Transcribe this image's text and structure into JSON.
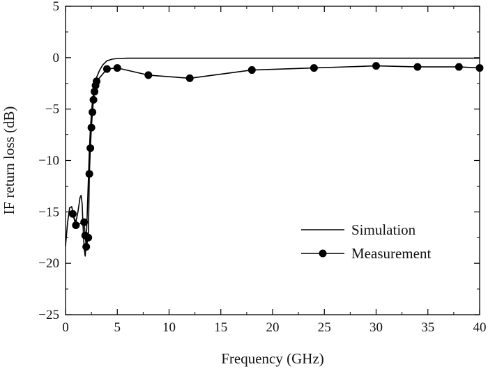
{
  "chart_data": {
    "type": "line",
    "title": "",
    "xlabel": "Frequency (GHz)",
    "ylabel": "IF return loss (dB)",
    "xlim": [
      0,
      40
    ],
    "ylim": [
      -25,
      5
    ],
    "xticks": [
      0,
      5,
      10,
      15,
      20,
      25,
      30,
      35,
      40
    ],
    "yticks": [
      5,
      0,
      -5,
      -10,
      -15,
      -20,
      -25
    ],
    "grid": false,
    "legend_position": "lower-right",
    "series": [
      {
        "name": "Simulation",
        "style": "line",
        "color": "#000000",
        "x": [
          0,
          0.2,
          0.4,
          0.6,
          0.8,
          1.0,
          1.2,
          1.4,
          1.5,
          1.6,
          1.7,
          1.8,
          1.9,
          2.0,
          2.1,
          2.2,
          2.3,
          2.4,
          2.5,
          2.6,
          2.8,
          3.0,
          3.3,
          3.6,
          4.0,
          4.5,
          5.0,
          6.0,
          8.0,
          12.0,
          20.0,
          30.0,
          40.0
        ],
        "y": [
          -18.3,
          -16.0,
          -14.6,
          -14.5,
          -15.5,
          -16.0,
          -15.0,
          -13.6,
          -13.4,
          -14.2,
          -16.5,
          -18.5,
          -19.3,
          -18.0,
          -15.0,
          -12.0,
          -9.0,
          -7.0,
          -5.5,
          -4.2,
          -2.8,
          -1.9,
          -1.2,
          -0.7,
          -0.3,
          -0.15,
          -0.08,
          -0.05,
          -0.05,
          -0.05,
          -0.05,
          -0.05,
          -0.05
        ]
      },
      {
        "name": "Measurement",
        "style": "line-marker",
        "color": "#000000",
        "x": [
          0.7,
          1.0,
          1.8,
          1.9,
          2.0,
          2.2,
          2.3,
          2.4,
          2.5,
          2.6,
          2.7,
          2.8,
          2.9,
          3.0,
          4.0,
          5.0,
          8.0,
          12.0,
          18.0,
          24.0,
          30.0,
          34.0,
          38.0,
          40.0
        ],
        "y": [
          -15.2,
          -16.3,
          -16.0,
          -17.3,
          -18.4,
          -17.5,
          -11.3,
          -8.8,
          -6.8,
          -5.3,
          -4.1,
          -3.3,
          -2.7,
          -2.3,
          -1.1,
          -1.0,
          -1.7,
          -2.0,
          -1.2,
          -1.0,
          -0.8,
          -0.9,
          -0.9,
          -1.0
        ]
      }
    ]
  }
}
